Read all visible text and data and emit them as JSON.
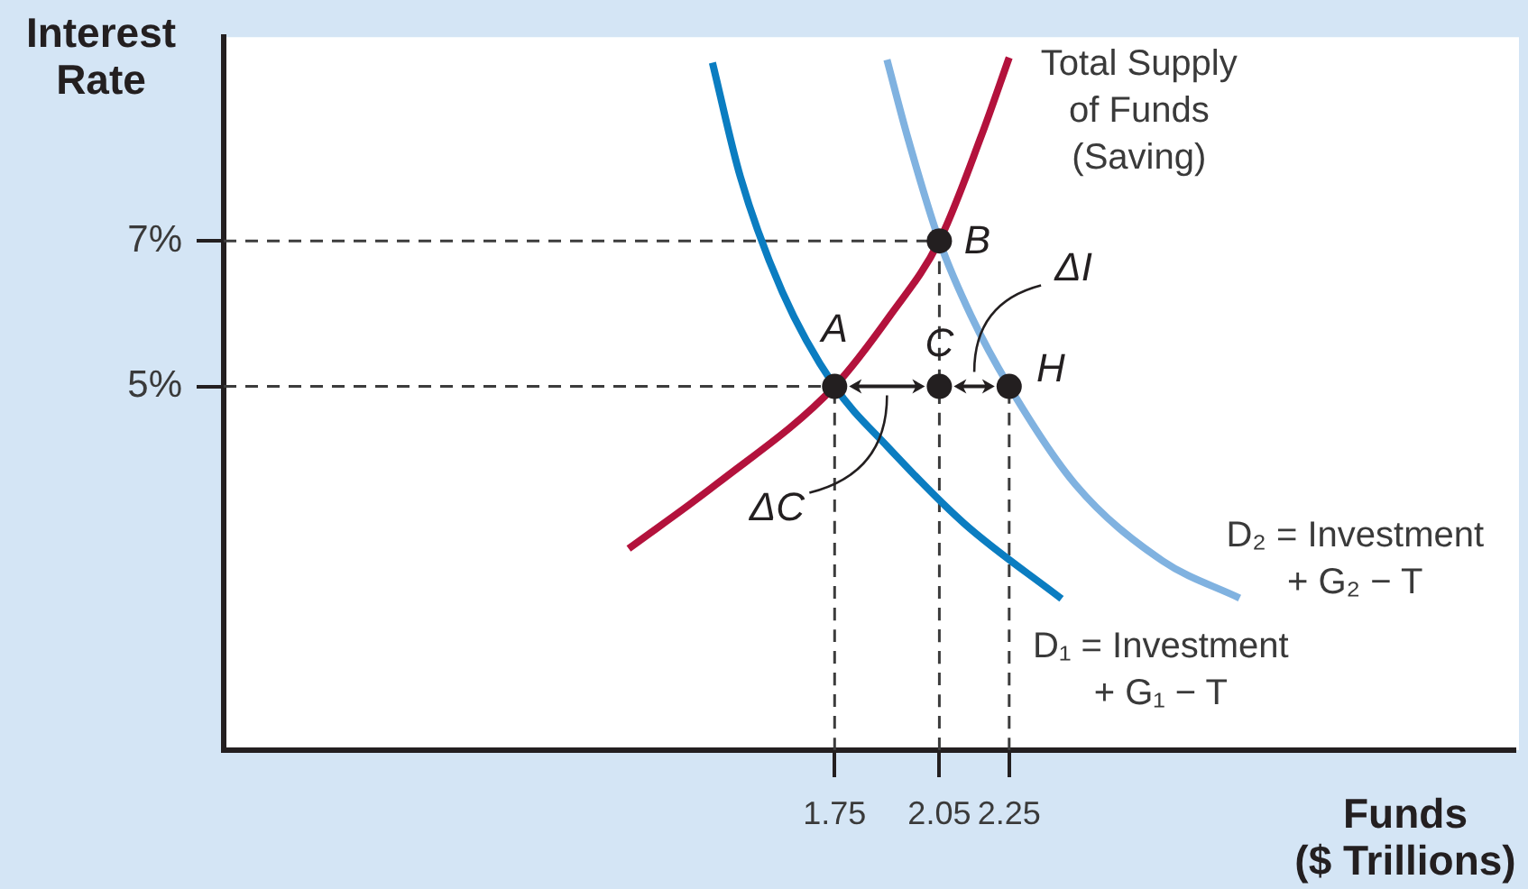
{
  "chart_data": {
    "type": "line",
    "xlabel": "Funds ($ Trillions)",
    "ylabel": "Interest Rate",
    "xlim": [
      0,
      3.7
    ],
    "ylim": [
      0,
      9.8
    ],
    "xticks": [
      1.75,
      2.05,
      2.25
    ],
    "yticks": [
      {
        "value": 5,
        "label": "5%"
      },
      {
        "value": 7,
        "label": "7%"
      }
    ],
    "series": [
      {
        "name": "Total Supply of Funds (Saving)",
        "color": "#b3123c",
        "marker": "none",
        "x": [
          1.16,
          1.41,
          1.75,
          1.91,
          2.05,
          2.17,
          2.25
        ],
        "values": [
          2.77,
          3.65,
          5,
          5.98,
          7,
          8.44,
          9.52
        ]
      },
      {
        "name": "D₁ = Investment + G₁ − T",
        "color": "#0b7dc1",
        "marker": "none",
        "x": [
          1.4,
          1.48,
          1.6,
          1.75,
          1.9,
          2.12,
          2.4
        ],
        "values": [
          9.45,
          7.88,
          6.3,
          5,
          4.18,
          3.12,
          2.08
        ]
      },
      {
        "name": "D₂ = Investment + G₂ − T",
        "color": "#80b2e0",
        "marker": "none",
        "x": [
          1.9,
          1.96,
          2.05,
          2.14,
          2.25,
          2.44,
          2.69,
          2.91
        ],
        "values": [
          9.49,
          8.41,
          7,
          5.98,
          5,
          3.65,
          2.6,
          2.09
        ]
      },
      {
        "type": "scatter",
        "color": "#231f20",
        "marker": "circle",
        "x": [
          1.75,
          2.05,
          2.25,
          2.05
        ],
        "values": [
          5,
          5,
          5,
          7
        ]
      },
      {
        "color": "#3c3c3c",
        "marker": "none",
        "line_style": "dashed",
        "x": [
          0,
          2.05
        ],
        "values": [
          7,
          7
        ]
      },
      {
        "color": "#3c3c3c",
        "marker": "none",
        "line_style": "dashed",
        "x": [
          0,
          1.75
        ],
        "values": [
          5,
          5
        ]
      },
      {
        "color": "#3c3c3c",
        "marker": "none",
        "line_style": "dashed",
        "x": [
          1.75,
          1.75
        ],
        "values": [
          0,
          5
        ]
      },
      {
        "color": "#3c3c3c",
        "marker": "none",
        "line_style": "dashed",
        "x": [
          2.05,
          2.05
        ],
        "values": [
          0,
          7
        ]
      },
      {
        "color": "#3c3c3c",
        "marker": "none",
        "line_style": "dashed",
        "x": [
          2.25,
          2.25
        ],
        "values": [
          0,
          5
        ]
      }
    ],
    "annotations": [
      {
        "text": "A",
        "x": 1.75,
        "y": 5
      },
      {
        "text": "B",
        "x": 2.05,
        "y": 7
      },
      {
        "text": "C",
        "x": 2.05,
        "y": 5
      },
      {
        "text": "H",
        "x": 2.25,
        "y": 5
      },
      "ΔC",
      "ΔI"
    ]
  }
}
